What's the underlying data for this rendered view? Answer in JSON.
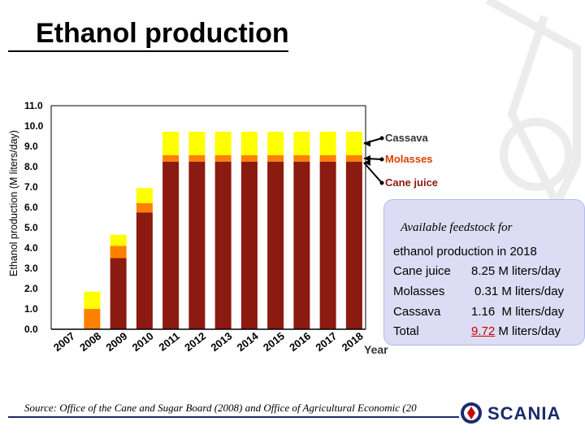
{
  "title": "Ethanol production",
  "chart_data": {
    "type": "bar",
    "stacked": true,
    "categories": [
      "2007",
      "2008",
      "2009",
      "2010",
      "2011",
      "2012",
      "2013",
      "2014",
      "2015",
      "2016",
      "2017",
      "2018"
    ],
    "series": [
      {
        "name": "Cane juice",
        "color": "#8b1a10",
        "values": [
          0,
          0,
          3.5,
          5.75,
          8.25,
          8.25,
          8.25,
          8.25,
          8.25,
          8.25,
          8.25,
          8.25
        ]
      },
      {
        "name": "Molasses",
        "color": "#ff8000",
        "values": [
          0,
          1.0,
          0.6,
          0.45,
          0.31,
          0.31,
          0.31,
          0.31,
          0.31,
          0.31,
          0.31,
          0.31
        ]
      },
      {
        "name": "Cassava",
        "color": "#ffff00",
        "values": [
          0,
          0.85,
          0.55,
          0.75,
          1.16,
          1.16,
          1.16,
          1.16,
          1.16,
          1.16,
          1.16,
          1.16
        ]
      }
    ],
    "ylabel": "Ethanol production (M liters/day)",
    "xlabel": "Year",
    "ylim": [
      0,
      11
    ],
    "yticks": [
      "0.0",
      "1.0",
      "2.0",
      "3.0",
      "4.0",
      "5.0",
      "6.0",
      "7.0",
      "8.0",
      "9.0",
      "10.0",
      "11.0"
    ],
    "grid": false,
    "legend": "right, arrow-annotated",
    "annotations": [
      "Cassava",
      "Molasses",
      "Cane juice"
    ]
  },
  "info_box": {
    "heading": "Available feedstock for",
    "subheading": "ethanol production in 2018",
    "rows": [
      {
        "label": "Cane juice",
        "value": "8.25 M liters/day"
      },
      {
        "label": "Molasses",
        "value": "0.31 M liters/day"
      },
      {
        "label": "Cassava",
        "value": "1.16  M liters/day"
      }
    ],
    "total": {
      "label": "Total",
      "number": "9.72",
      "unit": " M liters/day"
    }
  },
  "source": "Source: Office of the Cane and Sugar Board (2008) and Office of Agricultural Economic (20",
  "logo": {
    "text": "SCANIA"
  },
  "colors": {
    "cane_juice": "#8b1a10",
    "molasses": "#ff8000",
    "cassava": "#ffff00",
    "box": "#dcdcf4",
    "rule": "#1a2a6c"
  }
}
